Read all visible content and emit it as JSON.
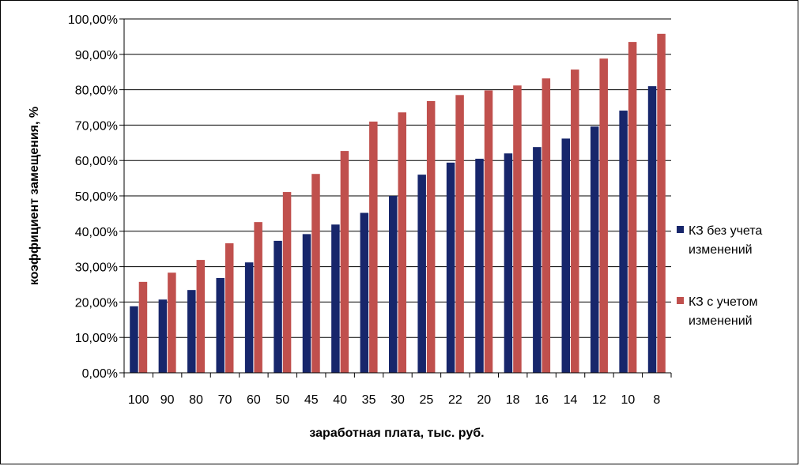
{
  "chart_data": {
    "type": "bar",
    "title": "",
    "xlabel": "заработная плата, тыс. руб.",
    "ylabel": "коэффициент замещения, %",
    "ylim": [
      0,
      100
    ],
    "ytick_labels": [
      "0,00%",
      "10,00%",
      "20,00%",
      "30,00%",
      "40,00%",
      "50,00%",
      "60,00%",
      "70,00%",
      "80,00%",
      "90,00%",
      "100,00%"
    ],
    "categories": [
      "100",
      "90",
      "80",
      "70",
      "60",
      "50",
      "45",
      "40",
      "35",
      "30",
      "25",
      "22",
      "20",
      "18",
      "16",
      "14",
      "12",
      "10",
      "8"
    ],
    "series": [
      {
        "name": "КЗ без учета изменений",
        "legend_lines": [
          "КЗ без учета",
          "изменений"
        ],
        "color": "#17266b",
        "values": [
          18.8,
          20.7,
          23.4,
          26.8,
          31.2,
          37.3,
          39.2,
          41.9,
          45.2,
          50.0,
          56.0,
          59.4,
          60.5,
          62.0,
          63.8,
          66.2,
          69.6,
          74.1,
          81.0
        ]
      },
      {
        "name": "КЗ с учетом изменений",
        "legend_lines": [
          "КЗ с учетом",
          "изменений"
        ],
        "color": "#c0504d",
        "values": [
          25.7,
          28.3,
          31.9,
          36.6,
          42.6,
          51.1,
          56.2,
          62.7,
          71.0,
          73.6,
          76.8,
          78.5,
          79.8,
          81.2,
          83.2,
          85.7,
          88.8,
          93.5,
          95.8
        ]
      }
    ],
    "grid": true,
    "legend_position": "right"
  }
}
